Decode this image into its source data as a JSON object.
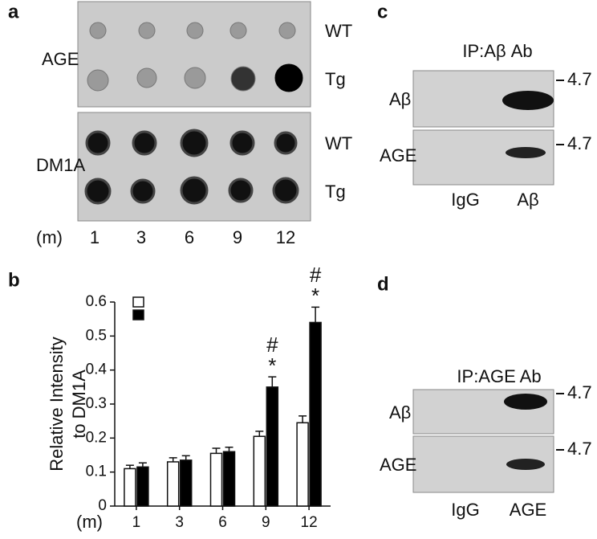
{
  "panel_a": {
    "label": "a",
    "rows": [
      "AGE",
      "DM1A"
    ],
    "genotypes": [
      "WT",
      "Tg",
      "WT",
      "Tg"
    ],
    "unit": "(m)",
    "months": [
      "1",
      "3",
      "6",
      "9",
      "12"
    ]
  },
  "chart_data": {
    "type": "bar",
    "panel_label": "b",
    "ylabel": [
      "Relative Intensity",
      "to DM1A"
    ],
    "x_unit": "(m)",
    "categories": [
      "1",
      "3",
      "6",
      "9",
      "12"
    ],
    "series": [
      {
        "color": "#ffffff",
        "values": [
          0.11,
          0.13,
          0.155,
          0.205,
          0.245
        ],
        "errors": [
          0.01,
          0.012,
          0.015,
          0.015,
          0.02
        ]
      },
      {
        "color": "#000000",
        "values": [
          0.115,
          0.135,
          0.16,
          0.35,
          0.54
        ],
        "errors": [
          0.012,
          0.013,
          0.013,
          0.03,
          0.045
        ]
      }
    ],
    "annotations": [
      "*",
      "#",
      "*",
      "#"
    ],
    "ylim": [
      0,
      0.6
    ],
    "yticks": [
      0,
      0.1,
      0.2,
      0.3,
      0.4,
      0.5,
      0.6
    ]
  },
  "panel_c": {
    "label": "c",
    "header": "IP:Aβ Ab",
    "rows": [
      "Aβ",
      "AGE"
    ],
    "markers": [
      "4.7",
      "4.7"
    ],
    "lanes": [
      "IgG",
      "Aβ"
    ]
  },
  "panel_d": {
    "label": "d",
    "header": "IP:AGE Ab",
    "rows": [
      "Aβ",
      "AGE"
    ],
    "markers": [
      "4.7",
      "4.7"
    ],
    "lanes": [
      "IgG",
      "AGE"
    ]
  }
}
